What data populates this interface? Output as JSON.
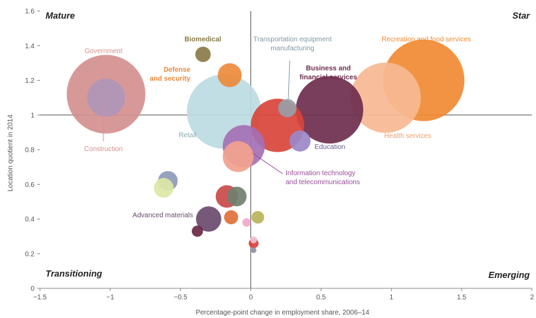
{
  "chart_data": {
    "type": "scatter",
    "xlabel": "Percentage-point change in employment share, 2006–14",
    "ylabel": "Location quotient in 2014",
    "xlim": [
      -1.5,
      2
    ],
    "ylim": [
      0,
      1.6
    ],
    "xticks": [
      "−1.5",
      "−1",
      "−0.5",
      "0",
      "0.5",
      "1",
      "1.5",
      "2"
    ],
    "xtick_values": [
      -1.5,
      -1,
      -0.5,
      0,
      0.5,
      1,
      1.5,
      2
    ],
    "yticks": [
      "0",
      "0.2",
      "0.4",
      "0.6",
      "0.8",
      "1",
      "1.2",
      "1.4",
      "1.6"
    ],
    "ytick_values": [
      0,
      0.2,
      0.4,
      0.6,
      0.8,
      1.0,
      1.2,
      1.4,
      1.6
    ],
    "reference_lines": {
      "x": 0,
      "y": 1
    },
    "grid": false,
    "quadrants": [
      {
        "id": "mature",
        "label": "Mature",
        "position": "top-left"
      },
      {
        "id": "star",
        "label": "Star",
        "position": "top-right"
      },
      {
        "id": "transitioning",
        "label": "Transitioning",
        "position": "bottom-left"
      },
      {
        "id": "emerging",
        "label": "Emerging",
        "position": "bottom-right"
      }
    ],
    "points": [
      {
        "label": "Government",
        "x": -1.03,
        "y": 1.12,
        "size": 0.56,
        "color": "#d4908f",
        "label_color": "#d4908f"
      },
      {
        "label": "Construction",
        "x": -1.03,
        "y": 1.1,
        "size": 0.27,
        "color": "#b095b8",
        "label_color": "#d4908f"
      },
      {
        "label": "Biomedical",
        "x": -0.34,
        "y": 1.35,
        "size": 0.11,
        "color": "#8a7b48",
        "label_color": "#8a7b48"
      },
      {
        "label": "Defense and security",
        "x": -0.15,
        "y": 1.23,
        "size": 0.17,
        "color": "#ee8a3c",
        "label_color": "#ee8a3c"
      },
      {
        "label": "Retail",
        "x": -0.19,
        "y": 1.02,
        "size": 0.53,
        "color": "#bcdbe2",
        "label_color": "#8aaab2"
      },
      {
        "label": "Transportation equipment manufacturing",
        "x": 0.26,
        "y": 1.04,
        "size": 0.13,
        "color": "#98a0a8",
        "label_color": "#7f9aa6"
      },
      {
        "label": "Business and financial services",
        "x": 0.56,
        "y": 1.03,
        "size": 0.48,
        "color": "#6e2e4e",
        "label_color": "#6e2e4e"
      },
      {
        "label": "Recreation and food services",
        "x": 1.23,
        "y": 1.2,
        "size": 0.58,
        "color": "#f08a32",
        "label_color": "#f08a32"
      },
      {
        "label": "Health services",
        "x": 0.96,
        "y": 1.1,
        "size": 0.5,
        "color": "#f7b892",
        "label_color": "#f0a070"
      },
      {
        "label": "Education",
        "x": 0.35,
        "y": 0.85,
        "size": 0.15,
        "color": "#9a88c8",
        "label_color": "#6a5a8c"
      },
      {
        "label": "Information technology and telecommunications",
        "x": -0.05,
        "y": 0.82,
        "size": 0.3,
        "color": "#a570b4",
        "label_color": "#9a4c9a"
      },
      {
        "label": "Advanced materials",
        "x": -0.3,
        "y": 0.4,
        "size": 0.18,
        "color": "#6a4a6e",
        "label_color": "#6a4a6e"
      }
    ],
    "unlabeled_points": [
      {
        "x": 0.19,
        "y": 0.94,
        "size": 0.38,
        "color": "#d9443a"
      },
      {
        "x": -0.09,
        "y": 0.76,
        "size": 0.22,
        "color": "#f2a28e"
      },
      {
        "x": -0.59,
        "y": 0.62,
        "size": 0.14,
        "color": "#8e9ab8"
      },
      {
        "x": -0.62,
        "y": 0.58,
        "size": 0.14,
        "color": "#dce8a6"
      },
      {
        "x": -0.17,
        "y": 0.53,
        "size": 0.16,
        "color": "#c94a48"
      },
      {
        "x": -0.1,
        "y": 0.53,
        "size": 0.14,
        "color": "#70806e"
      },
      {
        "x": -0.14,
        "y": 0.41,
        "size": 0.1,
        "color": "#e0703a"
      },
      {
        "x": 0.05,
        "y": 0.41,
        "size": 0.09,
        "color": "#b8b45a"
      },
      {
        "x": -0.03,
        "y": 0.38,
        "size": 0.06,
        "color": "#f0a8c8"
      },
      {
        "x": -0.38,
        "y": 0.33,
        "size": 0.08,
        "color": "#6a2848"
      },
      {
        "x": 0.02,
        "y": 0.28,
        "size": 0.05,
        "color": "#f0c0d8"
      },
      {
        "x": 0.02,
        "y": 0.26,
        "size": 0.07,
        "color": "#d94038"
      },
      {
        "x": 0.02,
        "y": 0.22,
        "size": 0.04,
        "color": "#9090a0"
      }
    ]
  }
}
